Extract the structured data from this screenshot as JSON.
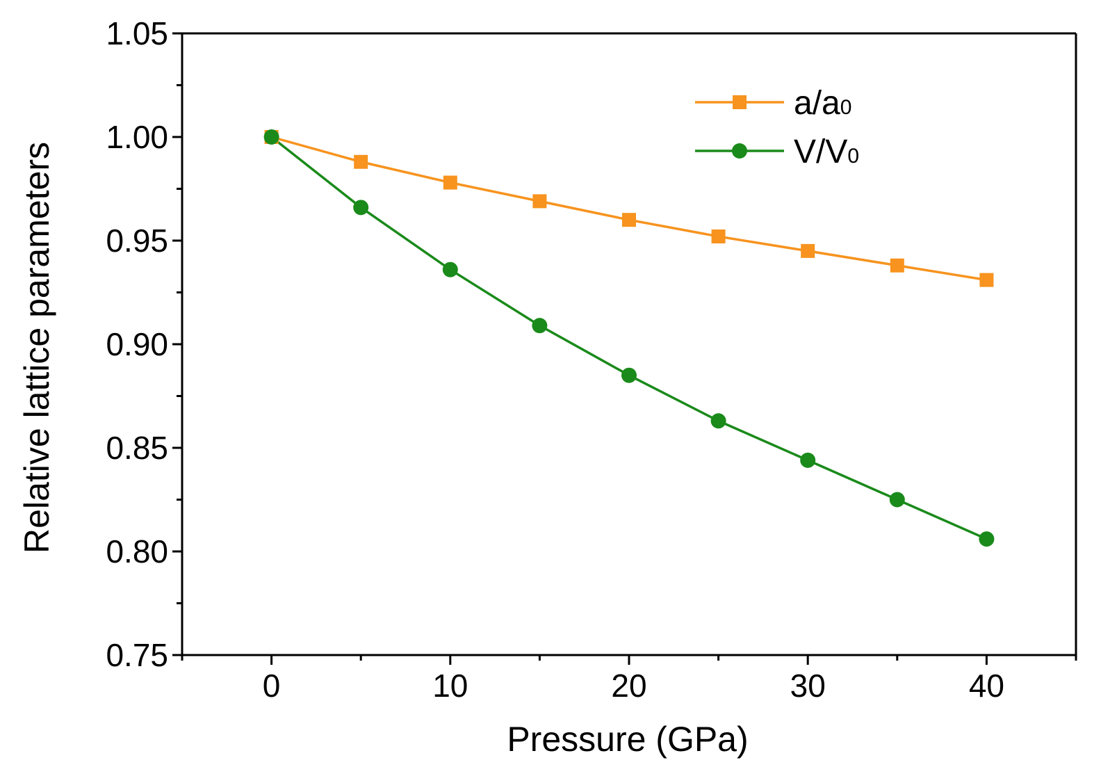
{
  "chart_data": {
    "type": "line",
    "title": "",
    "xlabel": "Pressure (GPa)",
    "ylabel": "Relative lattice parameters",
    "xlim": [
      -5,
      45
    ],
    "ylim": [
      0.75,
      1.05
    ],
    "x_ticks": [
      0,
      10,
      20,
      30,
      40
    ],
    "x_tick_labels": [
      "0",
      "10",
      "20",
      "30",
      "40"
    ],
    "x_minor_ticks": [
      -5,
      5,
      15,
      25,
      35,
      45
    ],
    "y_ticks": [
      0.75,
      0.8,
      0.85,
      0.9,
      0.95,
      1.0,
      1.05
    ],
    "y_tick_labels": [
      "0.75",
      "0.80",
      "0.85",
      "0.90",
      "0.95",
      "1.00",
      "1.05"
    ],
    "y_minor_ticks": [
      0.775,
      0.825,
      0.875,
      0.925,
      0.975,
      1.025
    ],
    "x": [
      0,
      5,
      10,
      15,
      20,
      25,
      30,
      35,
      40
    ],
    "series": [
      {
        "name": "a/a0",
        "legend_main": "a/a",
        "legend_sub": "0",
        "marker": "square",
        "color": "#F7931E",
        "values": [
          1.0,
          0.988,
          0.978,
          0.969,
          0.96,
          0.952,
          0.945,
          0.938,
          0.931
        ]
      },
      {
        "name": "V/V0",
        "legend_main": "V/V",
        "legend_sub": "0",
        "marker": "circle",
        "color": "#1A8A1A",
        "values": [
          1.0,
          0.966,
          0.936,
          0.909,
          0.885,
          0.863,
          0.844,
          0.825,
          0.806
        ]
      }
    ],
    "legend_position": "top-right",
    "grid": false
  }
}
